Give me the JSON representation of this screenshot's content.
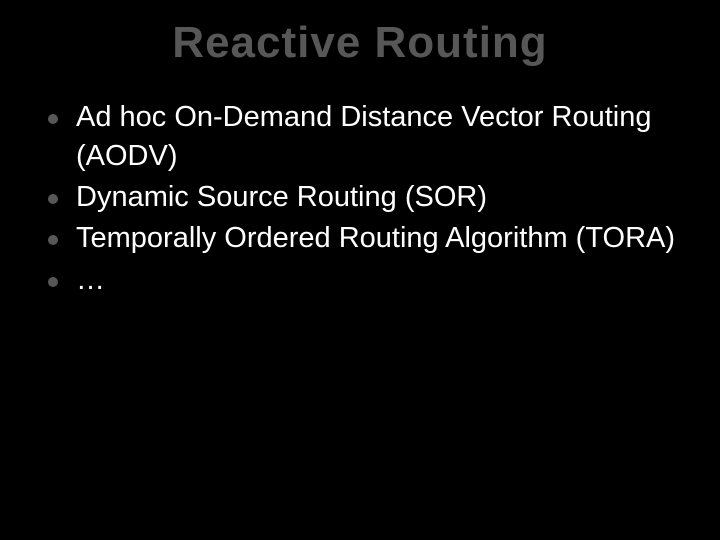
{
  "slide": {
    "title": "Reactive Routing",
    "title_color": "#575757",
    "title_fontsize": 44,
    "background_color": "#000000",
    "body_text_color": "#ffffff",
    "body_fontsize": 29,
    "bullet_color": "#575757",
    "bullet_size": 10,
    "bullets": [
      "Ad hoc On-Demand Distance Vector Routing (AODV)",
      "Dynamic Source Routing (SOR)",
      "Temporally Ordered Routing Algorithm (TORA)",
      "…"
    ]
  }
}
